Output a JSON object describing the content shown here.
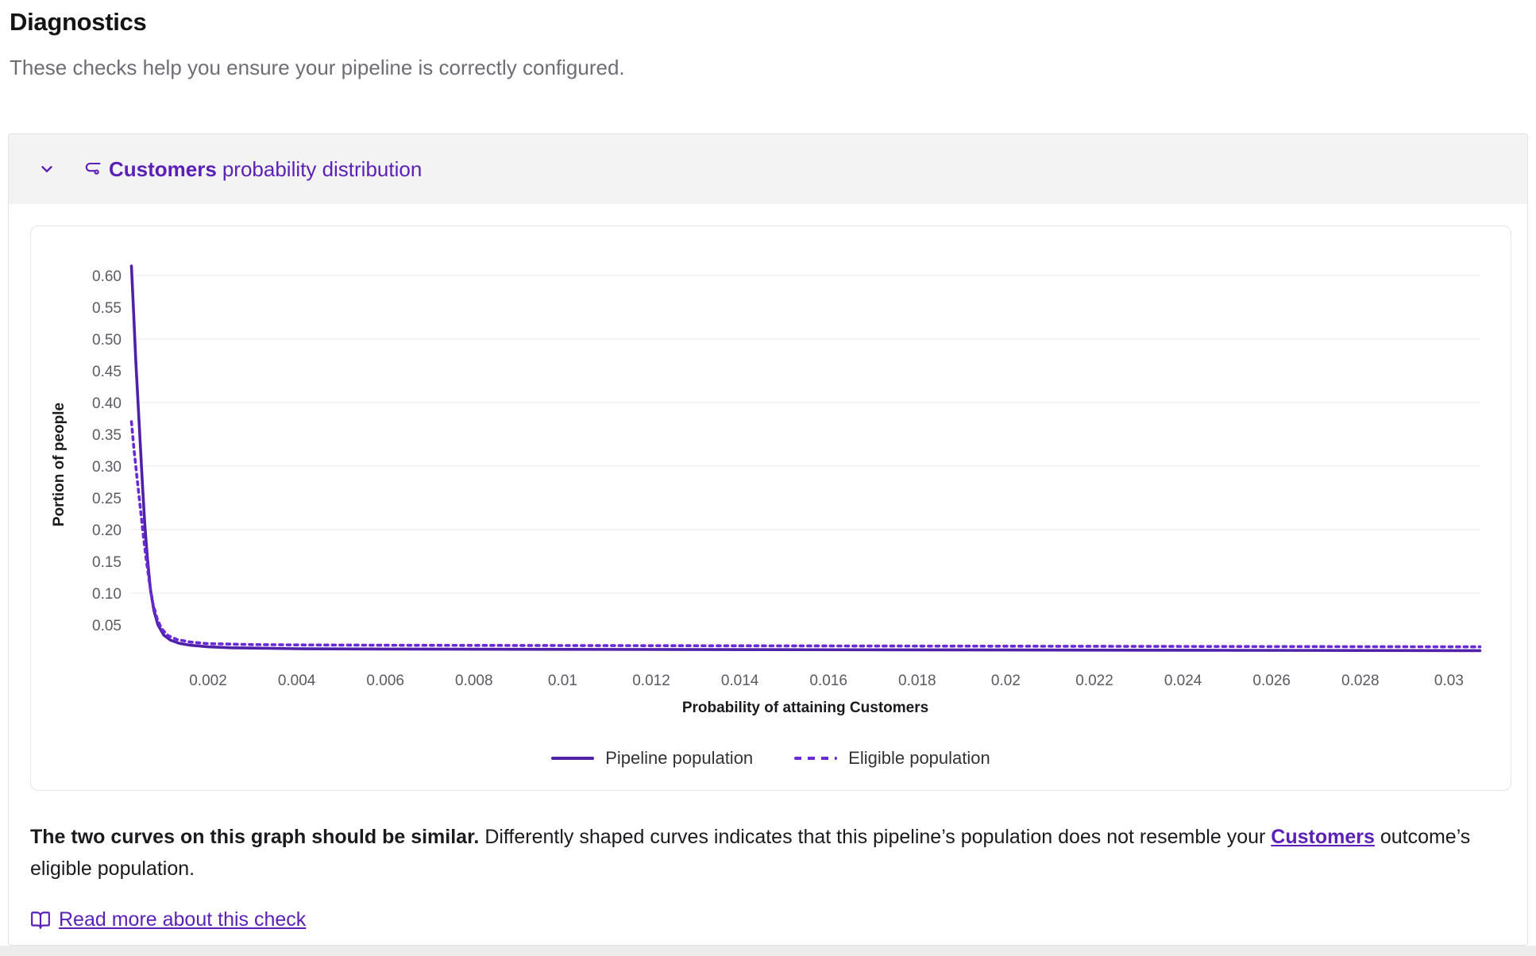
{
  "page": {
    "title": "Diagnostics",
    "subtitle": "These checks help you ensure your pipeline is correctly configured."
  },
  "panel": {
    "header": {
      "outcome": "Customers",
      "rest": "probability distribution"
    },
    "note": {
      "bold": "The two curves on this graph should be similar. ",
      "before_link": "Differently shaped curves indicates that this pipeline’s population does not resemble your ",
      "link": "Customers",
      "after_link": " outcome’s eligible population."
    },
    "read_more": "Read more about this check"
  },
  "icons": {
    "chevron": "chevron-down-icon",
    "route": "route-icon",
    "book": "book-open-icon"
  },
  "colors": {
    "accent": "#5b21b6",
    "pipeline_line": "#4e21a8",
    "eligible_line": "#6929d4",
    "grid": "#e8e8eb",
    "tick_text": "#5a5a63",
    "header_bg": "#f3f3f4"
  },
  "chart_data": {
    "type": "line",
    "title": "",
    "xlabel": "Probability of attaining Customers",
    "ylabel": "Portion of people",
    "xlim": [
      0.00027,
      0.0307
    ],
    "ylim": [
      0,
      0.64
    ],
    "grid": "horizontal-only",
    "grid_y_values": [
      0.1,
      0.2,
      0.3,
      0.4,
      0.5,
      0.6
    ],
    "y_ticks": [
      0.6,
      0.55,
      0.5,
      0.45,
      0.4,
      0.35,
      0.3,
      0.25,
      0.2,
      0.15,
      0.1,
      0.05
    ],
    "y_tick_labels": [
      "0.60",
      "0.55",
      "0.50",
      "0.45",
      "0.40",
      "0.35",
      "0.30",
      "0.25",
      "0.20",
      "0.15",
      "0.10",
      "0.05"
    ],
    "x_ticks": [
      0.002,
      0.004,
      0.006,
      0.008,
      0.01,
      0.012,
      0.014,
      0.016,
      0.018,
      0.02,
      0.022,
      0.024,
      0.026,
      0.028,
      0.03
    ],
    "x_tick_labels": [
      "0.002",
      "0.004",
      "0.006",
      "0.008",
      "0.01",
      "0.012",
      "0.014",
      "0.016",
      "0.018",
      "0.02",
      "0.022",
      "0.024",
      "0.026",
      "0.028",
      "0.03"
    ],
    "legend_position": "bottom-center",
    "series": [
      {
        "name": "Pipeline population",
        "style": "solid",
        "color": "#4e21a8",
        "points": [
          [
            0.00027,
            0.615
          ],
          [
            0.00032,
            0.54
          ],
          [
            0.00037,
            0.465
          ],
          [
            0.00042,
            0.4
          ],
          [
            0.00047,
            0.335
          ],
          [
            0.00052,
            0.27
          ],
          [
            0.00057,
            0.21
          ],
          [
            0.00063,
            0.155
          ],
          [
            0.0007,
            0.105
          ],
          [
            0.00078,
            0.072
          ],
          [
            0.00087,
            0.05
          ],
          [
            0.001,
            0.034
          ],
          [
            0.00115,
            0.026
          ],
          [
            0.00135,
            0.021
          ],
          [
            0.0016,
            0.018
          ],
          [
            0.002,
            0.0155
          ],
          [
            0.0025,
            0.014
          ],
          [
            0.003,
            0.0135
          ],
          [
            0.004,
            0.0125
          ],
          [
            0.006,
            0.012
          ],
          [
            0.01,
            0.0115
          ],
          [
            0.015,
            0.011
          ],
          [
            0.02,
            0.0105
          ],
          [
            0.025,
            0.01
          ],
          [
            0.0307,
            0.0095
          ]
        ]
      },
      {
        "name": "Eligible population",
        "style": "dashed",
        "color": "#6929d4",
        "points": [
          [
            0.00027,
            0.37
          ],
          [
            0.00033,
            0.325
          ],
          [
            0.0004,
            0.28
          ],
          [
            0.00047,
            0.235
          ],
          [
            0.00054,
            0.19
          ],
          [
            0.0006,
            0.155
          ],
          [
            0.00068,
            0.115
          ],
          [
            0.00075,
            0.085
          ],
          [
            0.00085,
            0.06
          ],
          [
            0.00095,
            0.044
          ],
          [
            0.0011,
            0.033
          ],
          [
            0.0013,
            0.027
          ],
          [
            0.0016,
            0.023
          ],
          [
            0.002,
            0.0205
          ],
          [
            0.003,
            0.019
          ],
          [
            0.004,
            0.0185
          ],
          [
            0.006,
            0.018
          ],
          [
            0.01,
            0.0175
          ],
          [
            0.015,
            0.017
          ],
          [
            0.02,
            0.0165
          ],
          [
            0.025,
            0.016
          ],
          [
            0.0307,
            0.0155
          ]
        ]
      }
    ]
  }
}
